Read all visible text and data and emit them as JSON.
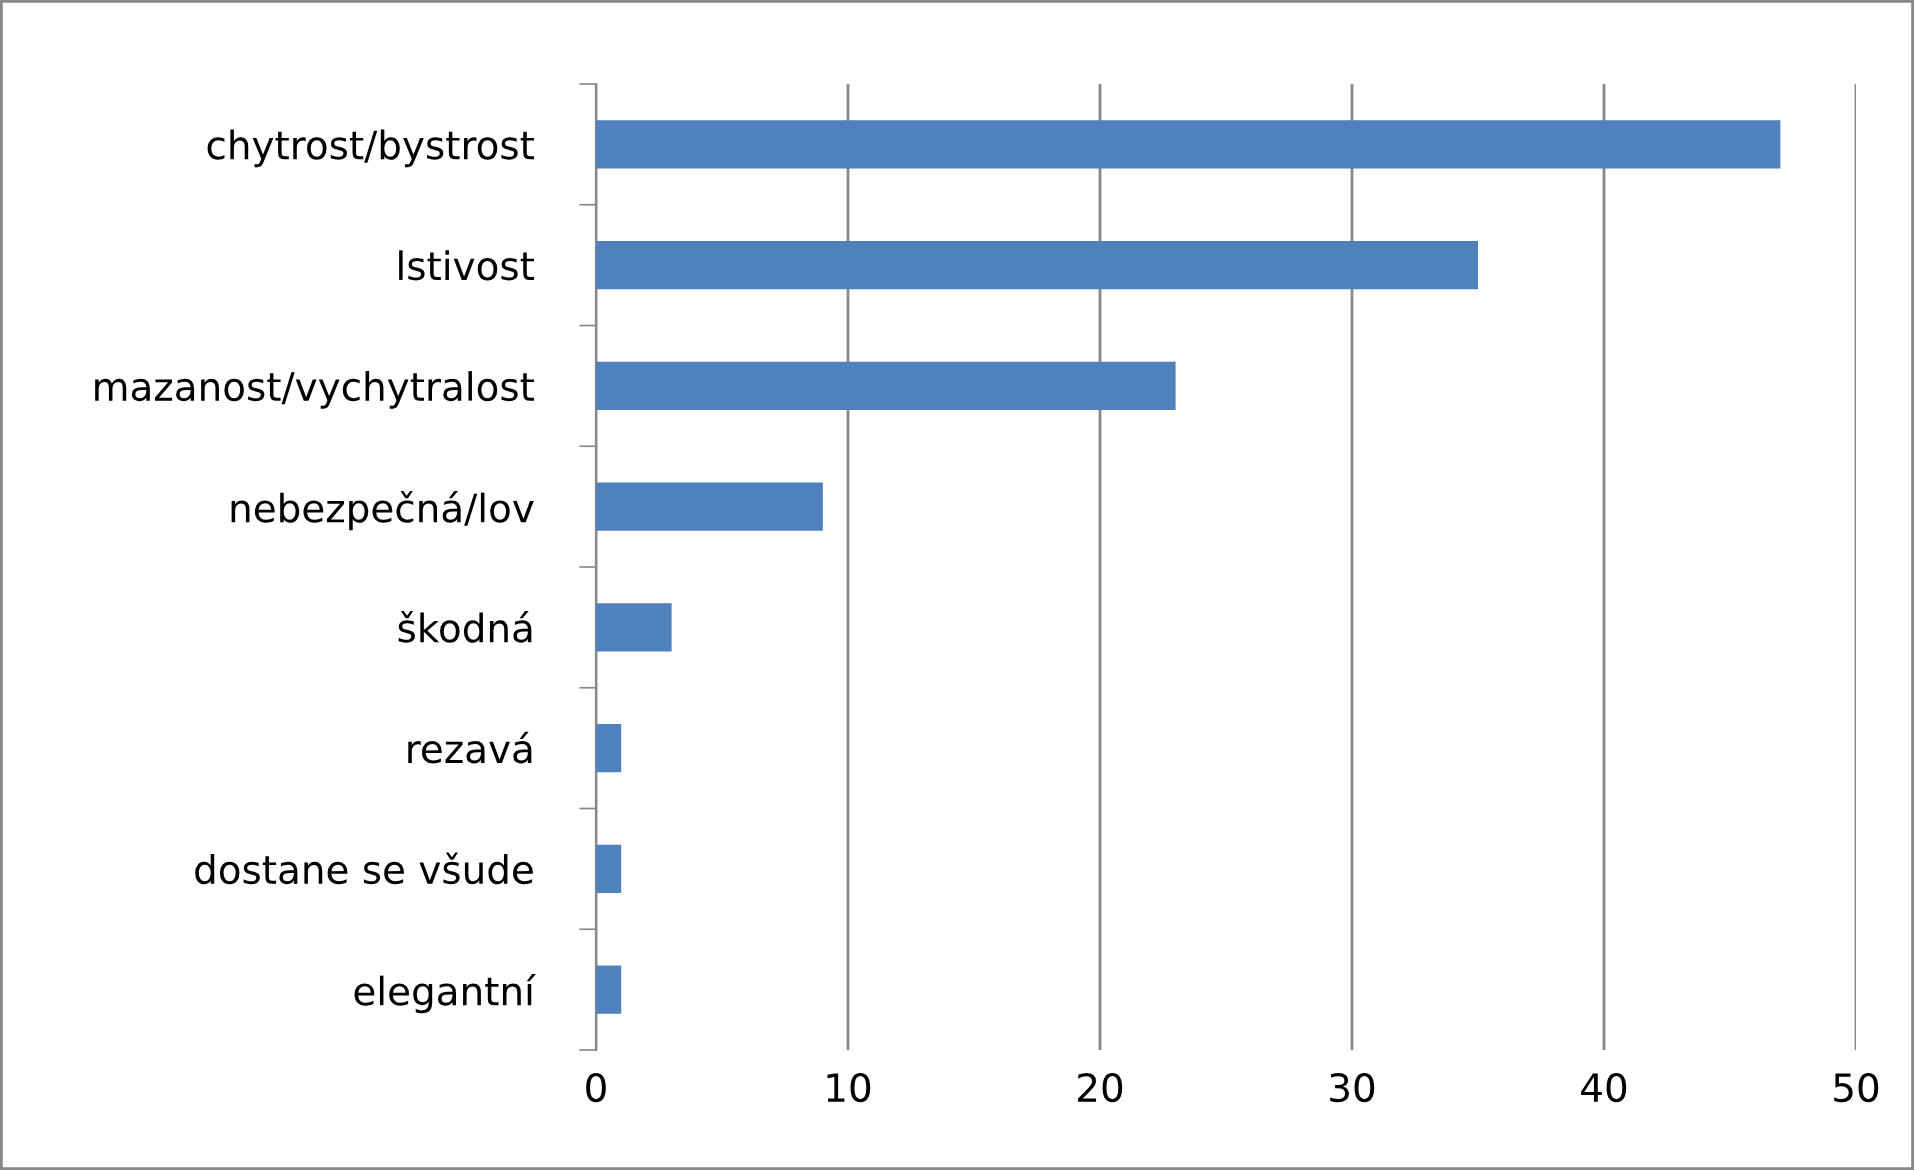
{
  "chart_data": {
    "type": "bar",
    "orientation": "horizontal",
    "categories": [
      "chytrost/bystrost",
      "lstivost",
      "mazanost/vychytralost",
      "nebezpečná/lov",
      "škodná",
      "rezavá",
      "dostane se všude",
      "elegantní"
    ],
    "values": [
      47,
      35,
      23,
      9,
      3,
      1,
      1,
      1
    ],
    "color": "#4f81bd",
    "xlim": [
      0,
      50
    ],
    "xticks": [
      0,
      10,
      20,
      30,
      40,
      50
    ],
    "grid": "x",
    "legend": false
  }
}
